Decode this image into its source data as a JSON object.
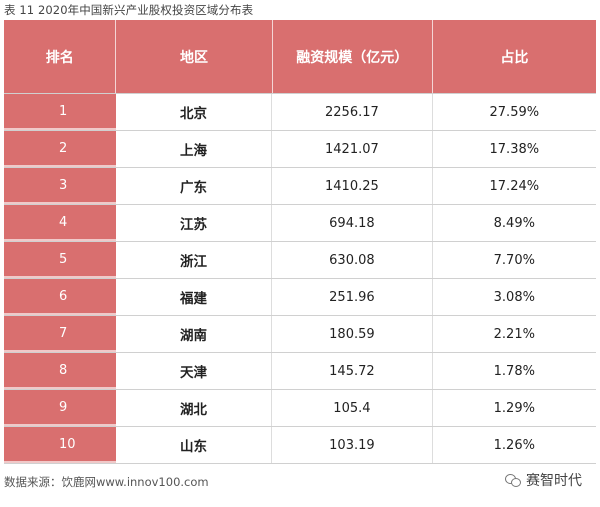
{
  "caption": "表 11  2020年中国新兴产业股权投资区域分布表",
  "table": {
    "headers": [
      "排名",
      "地区",
      "融资规模（亿元）",
      "占比"
    ],
    "rows": [
      {
        "rank": "1",
        "region": "北京",
        "amount": "2256.17",
        "share": "27.59%"
      },
      {
        "rank": "2",
        "region": "上海",
        "amount": "1421.07",
        "share": "17.38%"
      },
      {
        "rank": "3",
        "region": "广东",
        "amount": "1410.25",
        "share": "17.24%"
      },
      {
        "rank": "4",
        "region": "江苏",
        "amount": "694.18",
        "share": "8.49%"
      },
      {
        "rank": "5",
        "region": "浙江",
        "amount": "630.08",
        "share": "7.70%"
      },
      {
        "rank": "6",
        "region": "福建",
        "amount": "251.96",
        "share": "3.08%"
      },
      {
        "rank": "7",
        "region": "湖南",
        "amount": "180.59",
        "share": "2.21%"
      },
      {
        "rank": "8",
        "region": "天津",
        "amount": "145.72",
        "share": "1.78%"
      },
      {
        "rank": "9",
        "region": "湖北",
        "amount": "105.4",
        "share": "1.29%"
      },
      {
        "rank": "10",
        "region": "山东",
        "amount": "103.19",
        "share": "1.26%"
      }
    ]
  },
  "footer": "数据来源：饮鹿网www.innov100.com",
  "brand": {
    "name": "赛智时代",
    "icon": "wechat-icon"
  },
  "colors": {
    "header_bg": "#d96f6f",
    "rank_bg": "#d96f6f"
  }
}
